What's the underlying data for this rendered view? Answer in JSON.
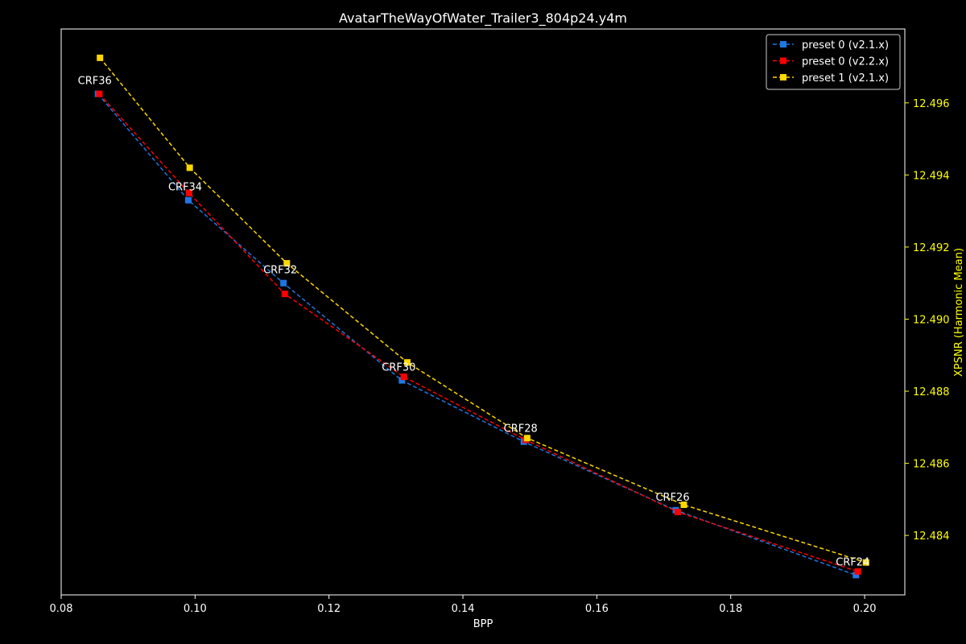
{
  "chart_data": {
    "type": "line",
    "title": "AvatarTheWayOfWater_Trailer3_804p24.y4m",
    "xlabel": "BPP",
    "ylabel": "XPSNR (Harmonic Mean)",
    "xlim": [
      0.08,
      0.206
    ],
    "ylim": [
      12.48235,
      12.49805
    ],
    "x_ticks": [
      "0.08",
      "0.10",
      "0.12",
      "0.14",
      "0.16",
      "0.18",
      "0.20"
    ],
    "y_ticks": [
      "12.484",
      "12.486",
      "12.488",
      "12.490",
      "12.492",
      "12.494",
      "12.496"
    ],
    "y_axis_position": "right",
    "grid": false,
    "legend_position": "top-right",
    "series": [
      {
        "name": "preset 0 (v2.1.x)",
        "color": "#1f77e4",
        "marker": "square",
        "linestyle": "dashed",
        "x": [
          0.0855,
          0.099,
          0.1132,
          0.1309,
          0.1491,
          0.1718,
          0.1987
        ],
        "y": [
          12.49625,
          12.4933,
          12.491,
          12.4883,
          12.4866,
          12.4847,
          12.4829
        ]
      },
      {
        "name": "preset 0 (v2.2.x)",
        "color": "#ff0000",
        "marker": "square",
        "linestyle": "dashed",
        "x": [
          0.0857,
          0.0991,
          0.1134,
          0.1312,
          0.1494,
          0.1721,
          0.199
        ],
        "y": [
          12.49625,
          12.4935,
          12.4907,
          12.4884,
          12.48665,
          12.48465,
          12.483
        ]
      },
      {
        "name": "preset 1 (v2.1.x)",
        "color": "#ffd700",
        "marker": "square",
        "linestyle": "dashed",
        "x": [
          0.0858,
          0.0992,
          0.1137,
          0.1317,
          0.1496,
          0.173,
          0.2002
        ],
        "y": [
          12.49725,
          12.4942,
          12.49155,
          12.4888,
          12.4867,
          12.48485,
          12.48325
        ]
      }
    ],
    "annotations": [
      {
        "text": "CRF36",
        "x": 0.0855,
        "y": 12.49625
      },
      {
        "text": "CRF34",
        "x": 0.099,
        "y": 12.4933
      },
      {
        "text": "CRF32",
        "x": 0.1132,
        "y": 12.491
      },
      {
        "text": "CRF30",
        "x": 0.1309,
        "y": 12.4883
      },
      {
        "text": "CRF28",
        "x": 0.1491,
        "y": 12.4866
      },
      {
        "text": "CRF26",
        "x": 0.1718,
        "y": 12.4847
      },
      {
        "text": "CRF24",
        "x": 0.1987,
        "y": 12.4829
      }
    ],
    "colors": {
      "background": "#000000",
      "axes": "#ffffff",
      "text": "#ffffff",
      "y_axis_text": "#ffff00"
    }
  }
}
